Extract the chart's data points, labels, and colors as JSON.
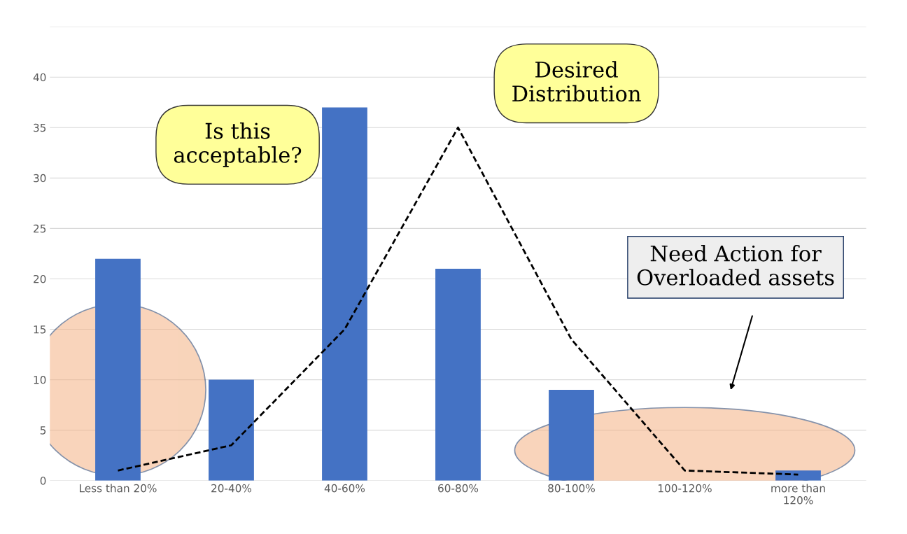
{
  "chart_data": {
    "type": "bar",
    "categories": [
      "Less than 20%",
      "20-40%",
      "40-60%",
      "60-80%",
      "80-100%",
      "100-120%",
      "more than\n120%"
    ],
    "series": [
      {
        "color": "#4472c4",
        "values": [
          22,
          10,
          37,
          21,
          9,
          0,
          1
        ]
      },
      {
        "type": "line",
        "color": "#000000",
        "line_style": "dashed",
        "values": [
          1,
          3.5,
          15,
          35,
          14,
          1,
          0.6
        ]
      }
    ],
    "ylim": [
      0,
      45
    ],
    "yticks": [
      0,
      5,
      10,
      15,
      20,
      25,
      30,
      35,
      40,
      {
        "value": 45,
        "label": null
      }
    ],
    "grid": "y",
    "annotations": [
      "Is this\nacceptable?",
      "Desired\nDistribution",
      "Need Action for\nOverloaded assets"
    ]
  }
}
